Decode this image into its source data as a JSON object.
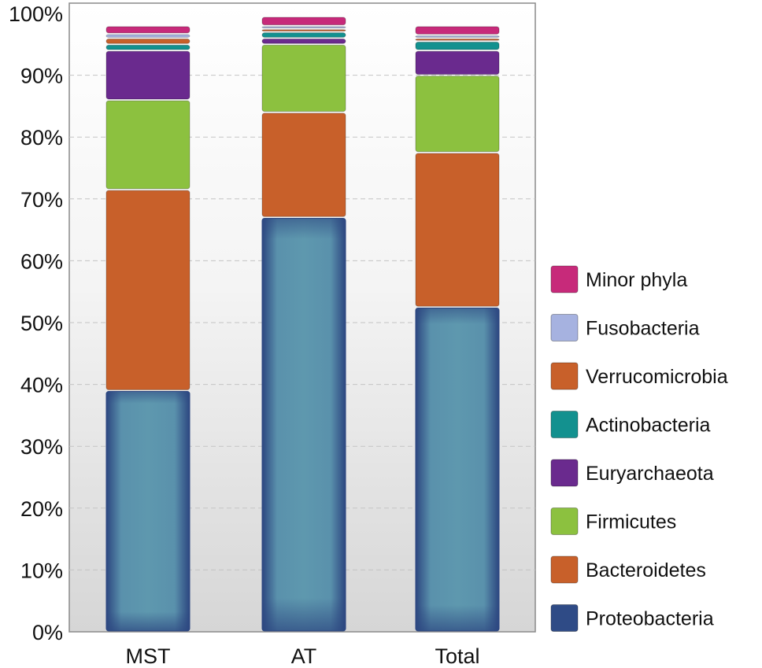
{
  "chart_data": {
    "type": "bar",
    "stacked": true,
    "title": "",
    "xlabel": "",
    "ylabel": "",
    "ylim": [
      0,
      100
    ],
    "y_ticks": [
      "0%",
      "10%",
      "20%",
      "30%",
      "40%",
      "50%",
      "60%",
      "70%",
      "80%",
      "90%",
      "100%"
    ],
    "grid": true,
    "legend_position": "right",
    "categories": [
      "MST",
      "AT",
      "Total"
    ],
    "series": [
      {
        "name": "Proteobacteria",
        "color": "#2f4b86",
        "values": [
          39,
          67,
          52.5
        ]
      },
      {
        "name": "Bacteroidetes",
        "color": "#c8602a",
        "values": [
          32.5,
          17,
          25
        ]
      },
      {
        "name": "Firmicutes",
        "color": "#8cc13f",
        "values": [
          14.5,
          11,
          12.5
        ]
      },
      {
        "name": "Euryarchaeota",
        "color": "#6a2a8e",
        "values": [
          8,
          1,
          4
        ]
      },
      {
        "name": "Actinobacteria",
        "color": "#13918f",
        "values": [
          1,
          1,
          1.5
        ]
      },
      {
        "name": "Verrucomicrobia",
        "color": "#c8602a",
        "values": [
          1,
          0.5,
          0.5
        ]
      },
      {
        "name": "Fusobacteria",
        "color": "#a6b2e0",
        "values": [
          0.7,
          0.5,
          0.5
        ]
      },
      {
        "name": "Minor phyla",
        "color": "#c72a7a",
        "values": [
          1.3,
          1.5,
          1.5
        ]
      }
    ],
    "legend_order": [
      "Minor phyla",
      "Fusobacteria",
      "Verrucomicrobia",
      "Actinobacteria",
      "Euryarchaeota",
      "Firmicutes",
      "Bacteroidetes",
      "Proteobacteria"
    ]
  }
}
